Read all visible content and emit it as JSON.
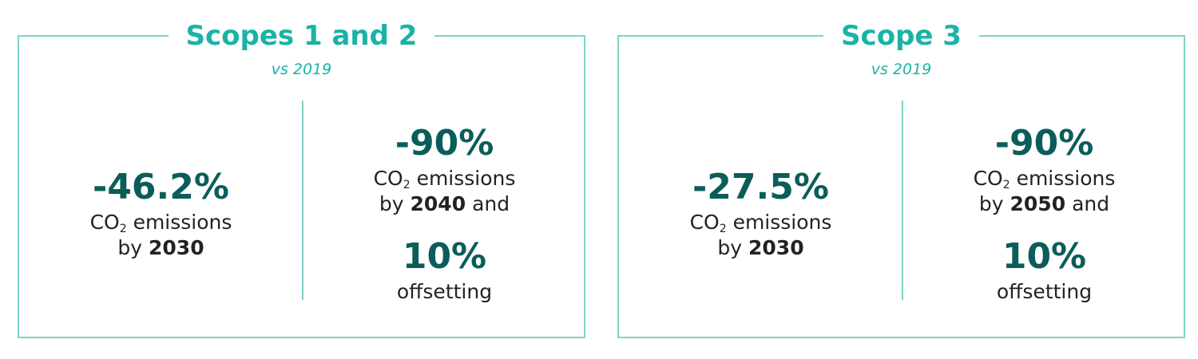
{
  "panels": [
    {
      "title": "Scopes 1 and 2",
      "subtitle": "vs 2019",
      "targets": [
        {
          "value": "-46.2%",
          "co": "CO",
          "sub": "2",
          "rest": "emissions",
          "by": "by",
          "year": "2030"
        },
        {
          "value": "-90%",
          "co": "CO",
          "sub": "2",
          "rest": "emissions",
          "by": "by",
          "year": "2040",
          "tail": "and",
          "offset_value": "10%",
          "offset_label": "offsetting"
        }
      ]
    },
    {
      "title": "Scope 3",
      "subtitle": "vs 2019",
      "targets": [
        {
          "value": "-27.5%",
          "co": "CO",
          "sub": "2",
          "rest": "emissions",
          "by": "by",
          "year": "2030"
        },
        {
          "value": "-90%",
          "co": "CO",
          "sub": "2",
          "rest": "emissions",
          "by": "by",
          "year": "2050",
          "tail": "and",
          "offset_value": "10%",
          "offset_label": "offsetting"
        }
      ]
    }
  ]
}
